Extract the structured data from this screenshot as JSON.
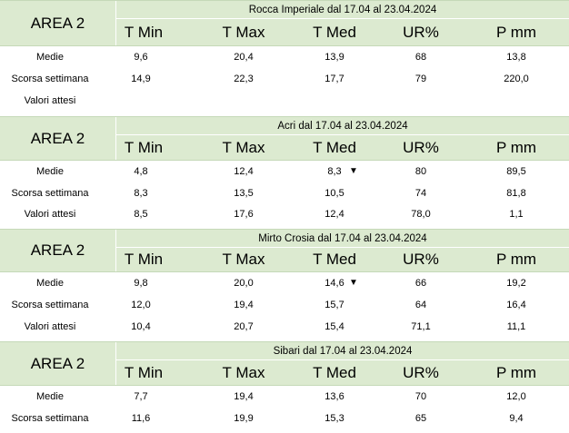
{
  "columns": [
    "T Min",
    "T Max",
    "T Med",
    "UR%",
    "P mm"
  ],
  "tables": [
    {
      "area": "AREA 2",
      "title": "Rocca Imperiale  dal 17.04 al 23.04.2024",
      "rows": [
        {
          "label": "Medie",
          "values": [
            "9,6",
            "20,4",
            "13,9",
            "68",
            "13,8"
          ],
          "arrow": ""
        },
        {
          "label": "Scorsa settimana",
          "values": [
            "14,9",
            "22,3",
            "17,7",
            "79",
            "220,0"
          ],
          "arrow": ""
        },
        {
          "label": "Valori attesi",
          "values": [
            "",
            "",
            "",
            "",
            ""
          ],
          "arrow": ""
        }
      ]
    },
    {
      "area": "AREA 2",
      "title": "Acri dal 17.04 al 23.04.2024",
      "rows": [
        {
          "label": "Medie",
          "values": [
            "4,8",
            "12,4",
            "8,3",
            "80",
            "89,5"
          ],
          "arrow": "▼"
        },
        {
          "label": "Scorsa settimana",
          "values": [
            "8,3",
            "13,5",
            "10,5",
            "74",
            "81,8"
          ],
          "arrow": ""
        },
        {
          "label": "Valori attesi",
          "values": [
            "8,5",
            "17,6",
            "12,4",
            "78,0",
            "1,1"
          ],
          "arrow": ""
        }
      ]
    },
    {
      "area": "AREA 2",
      "title": "Mirto Crosia dal 17.04 al 23.04.2024",
      "rows": [
        {
          "label": "Medie",
          "values": [
            "9,8",
            "20,0",
            "14,6",
            "66",
            "19,2"
          ],
          "arrow": "▼"
        },
        {
          "label": "Scorsa settimana",
          "values": [
            "12,0",
            "19,4",
            "15,7",
            "64",
            "16,4"
          ],
          "arrow": ""
        },
        {
          "label": "Valori attesi",
          "values": [
            "10,4",
            "20,7",
            "15,4",
            "71,1",
            "11,1"
          ],
          "arrow": ""
        }
      ]
    },
    {
      "area": "AREA 2",
      "title": "Sibari dal 17.04 al 23.04.2024",
      "rows": [
        {
          "label": "Medie",
          "values": [
            "7,7",
            "19,4",
            "13,6",
            "70",
            "12,0"
          ],
          "arrow": ""
        },
        {
          "label": "Scorsa settimana",
          "values": [
            "11,6",
            "19,9",
            "15,3",
            "65",
            "9,4"
          ],
          "arrow": ""
        }
      ]
    }
  ]
}
